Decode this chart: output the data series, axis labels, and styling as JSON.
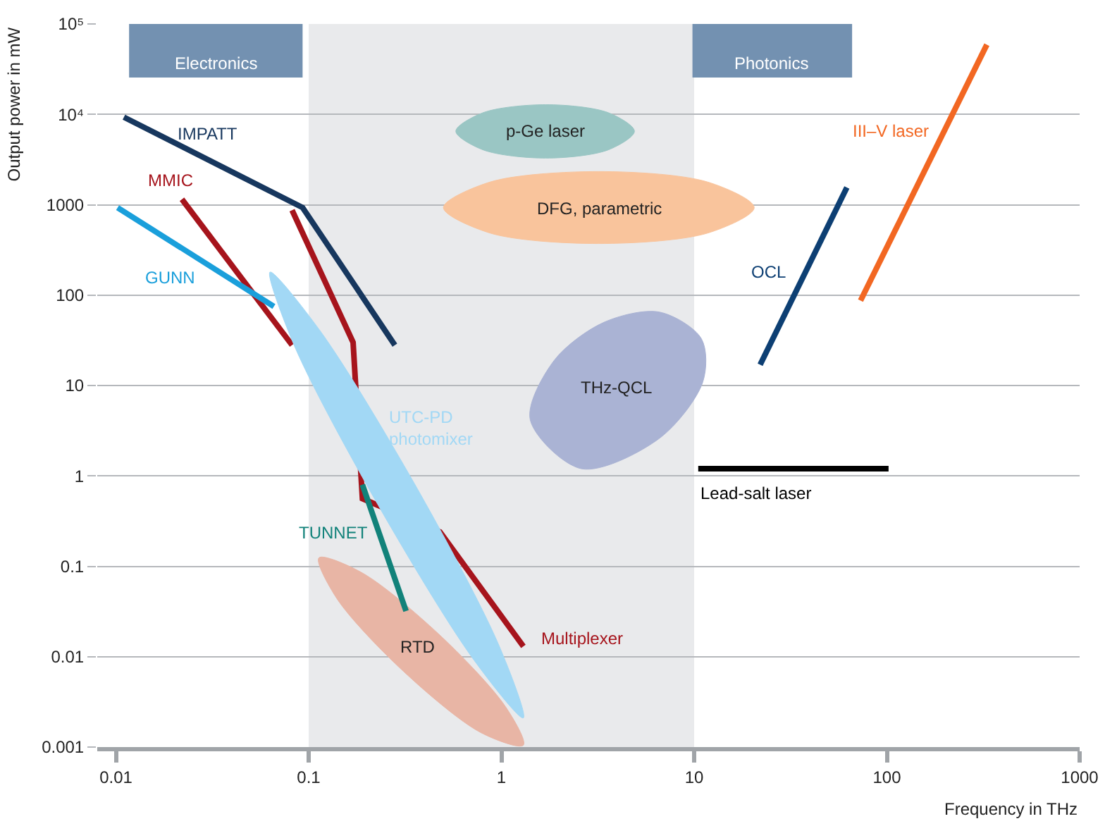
{
  "chart_data": {
    "type": "line",
    "xlabel": "Frequency in THz",
    "ylabel": "Output power in mW",
    "log": "xy",
    "grid": "y",
    "legend": false,
    "marker": "none",
    "line_style": "solid",
    "xlim": [
      0.008,
      1000
    ],
    "ylim": [
      0.001,
      100000
    ],
    "xticks": [
      0.01,
      0.1,
      1,
      10,
      100,
      1000
    ],
    "yticks": [
      0.001,
      0.01,
      0.1,
      1,
      10,
      100,
      1000,
      {
        "value": 10000,
        "label": "10⁴"
      },
      {
        "value": 100000,
        "label": "10⁵"
      }
    ],
    "bands": [
      {
        "axis": "x",
        "from": 0.1,
        "to": 10,
        "color": "#e9eaec"
      },
      {
        "axis": "x",
        "from": 0.0117,
        "to": 0.093,
        "label": "Electronics",
        "color": "#7391b1"
      },
      {
        "axis": "x",
        "from": 9.8,
        "to": 66,
        "label": "Photonics",
        "color": "#7391b1"
      }
    ],
    "series": [
      {
        "name": "RTD",
        "type": "area",
        "color": "#e8b5a5",
        "x": [
          0.113,
          0.187,
          0.47,
          1.05,
          1.3,
          0.785,
          0.31,
          0.14
        ],
        "values": [
          0.124,
          0.086,
          0.018,
          0.0028,
          0.00105,
          0.00144,
          0.0069,
          0.044
        ]
      },
      {
        "name": "IMPATT",
        "color": "#17375e",
        "x": [
          0.011,
          0.093,
          0.28
        ],
        "values": [
          9300,
          930,
          28
        ]
      },
      {
        "name": "MMIC",
        "color": "#a6141c",
        "x": [
          0.022,
          0.082
        ],
        "values": [
          1150,
          28
        ]
      },
      {
        "name": "Multiplexer",
        "color": "#a6141c",
        "x": [
          0.082,
          0.17,
          0.19,
          0.48,
          1.3
        ],
        "values": [
          870,
          30,
          0.56,
          0.24,
          0.013
        ]
      },
      {
        "name": "GUNN",
        "color": "#1a9fdb",
        "x": [
          0.0102,
          0.066
        ],
        "values": [
          930,
          75
        ]
      },
      {
        "name": "TUNNET",
        "color": "#12827a",
        "x": [
          0.19,
          0.32
        ],
        "values": [
          0.8,
          0.032
        ]
      },
      {
        "name": "UTC-PD\nphotomixer",
        "type": "area",
        "color": "#a2d8f5",
        "x": [
          0.063,
          0.114,
          0.355,
          0.97,
          1.3,
          0.72,
          0.23,
          0.084
        ],
        "values": [
          180,
          41,
          0.81,
          0.0134,
          0.0021,
          0.0092,
          0.47,
          28
        ]
      },
      {
        "name": "OCL",
        "color": "#0d3f73",
        "x": [
          22,
          62
        ],
        "values": [
          17,
          1550
        ]
      },
      {
        "name": "III–V laser",
        "color": "#f26722",
        "x": [
          73,
          330
        ],
        "values": [
          87,
          59000
        ]
      },
      {
        "name": "Lead-salt laser",
        "color": "#000000",
        "x": [
          10.5,
          102
        ],
        "values": [
          1.2,
          1.2
        ]
      },
      {
        "name": "p-Ge laser",
        "type": "area",
        "color": "#9ac6c4",
        "x": [
          0.58,
          0.8,
          1.7,
          3.6,
          4.9,
          3.6,
          1.7,
          0.8
        ],
        "values": [
          6500,
          10400,
          12800,
          10400,
          6500,
          4060,
          3280,
          4060
        ]
      },
      {
        "name": "DFG, parametric",
        "type": "area",
        "color": "#f9c49c",
        "x": [
          0.5,
          0.87,
          3.2,
          11.8,
          20.5,
          11.8,
          3.2,
          0.87
        ],
        "values": [
          930,
          1780,
          2330,
          1780,
          930,
          487,
          372,
          487
        ]
      },
      {
        "name": "THz-QCL",
        "type": "area",
        "color": "#aab3d4",
        "x": [
          1.41,
          1.88,
          3.4,
          6.6,
          10.9,
          11.1,
          6.6,
          2.6
        ],
        "values": [
          4.2,
          19,
          50,
          65,
          33,
          11,
          2.6,
          1.2
        ]
      }
    ]
  }
}
